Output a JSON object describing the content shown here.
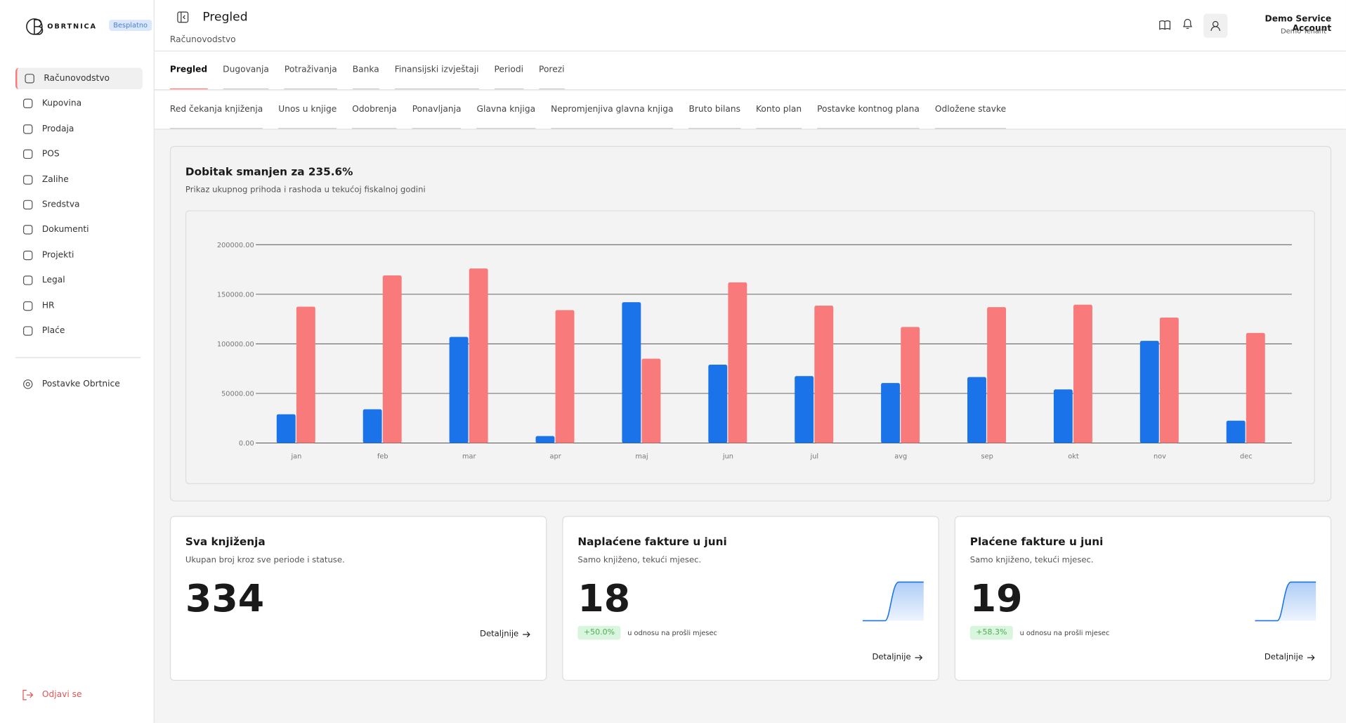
{
  "sidebar": {
    "brand": "OBRTNICA",
    "badge": "Besplatno",
    "nav": [
      "Računovodstvo",
      "Kupovina",
      "Prodaja",
      "POS",
      "Zalihe",
      "Sredstva",
      "Dokumenti",
      "Projekti",
      "Legal",
      "HR",
      "Plaće"
    ],
    "settings": "Postavke Obrtnice",
    "logout": "Odjavi se"
  },
  "header": {
    "title": "Pregled",
    "breadcrumb": "Računovodstvo",
    "user": "Demo Service Account",
    "tenant": "Demo Tenant"
  },
  "tabs": [
    "Pregled",
    "Dugovanja",
    "Potraživanja",
    "Banka",
    "Finansijski izvještaji",
    "Periodi",
    "Porezi"
  ],
  "subtabs": [
    "Red čekanja knjiženja",
    "Unos u knjige",
    "Odobrenja",
    "Ponavljanja",
    "Glavna knjiga",
    "Nepromjenjiva glavna knjiga",
    "Bruto bilans",
    "Konto plan",
    "Postavke kontnog plana",
    "Odložene stavke"
  ],
  "chart_card": {
    "title": "Dobitak smanjen za 235.6%",
    "subtitle": "Prikaz ukupnog prihoda i rashoda u tekućoj fiskalnoj godini"
  },
  "chart_data": {
    "type": "bar",
    "categories": [
      "jan",
      "feb",
      "mar",
      "apr",
      "maj",
      "jun",
      "jul",
      "avg",
      "sep",
      "okt",
      "nov",
      "dec"
    ],
    "series": [
      {
        "color": "#1a73e8",
        "values": [
          29000,
          34000,
          107000,
          7000,
          142000,
          79000,
          67500,
          60500,
          66500,
          54000,
          103000,
          22500
        ]
      },
      {
        "color": "#f87a7a",
        "values": [
          137500,
          169000,
          176000,
          134000,
          85000,
          162000,
          138500,
          117000,
          137000,
          139500,
          126500,
          111000
        ]
      }
    ],
    "ylim": [
      0,
      200000
    ],
    "yticks": [
      {
        "value": 0,
        "label": "0.00"
      },
      {
        "value": 50000,
        "label": "50000.00"
      },
      {
        "value": 100000,
        "label": "100000.00"
      },
      {
        "value": 150000,
        "label": "150000.00"
      },
      {
        "value": 200000,
        "label": "200000.00"
      }
    ],
    "grid": true
  },
  "cards": [
    {
      "title": "Sva knjiženja",
      "subtitle": "Ukupan broj kroz sve periode i statuse.",
      "value": 334,
      "link": "Detaljnije"
    },
    {
      "title": "Naplaćene fakture u juni",
      "subtitle": "Samo knjiženo, tekući mjesec.",
      "value": 18,
      "change": "+50.0%",
      "note": "u odnosu na prošli mjesec",
      "link": "Detaljnije"
    },
    {
      "title": "Plaćene fakture u juni",
      "subtitle": "Samo knjiženo, tekući mjesec.",
      "value": 19,
      "change": "+58.3%",
      "note": "u odnosu na prošli mjesec",
      "link": "Detaljnije"
    }
  ]
}
